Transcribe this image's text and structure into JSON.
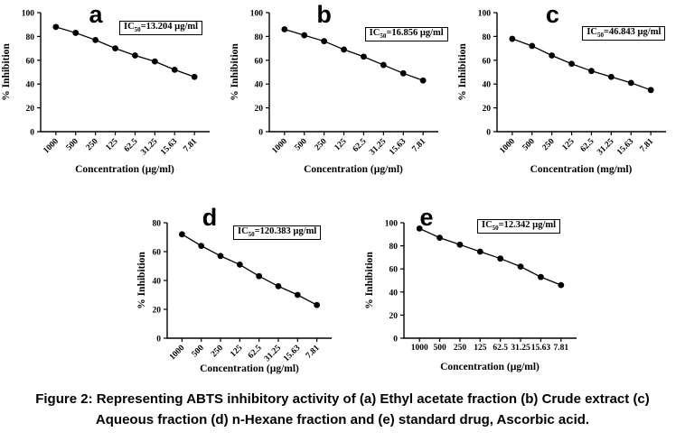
{
  "palette": {
    "ink": "#000000",
    "background": "#ffffff"
  },
  "ic_prefix": "IC",
  "ic_sub": "50",
  "figure_caption": {
    "line1": "Figure 2: Representing ABTS inhibitory activity of (a) Ethyl acetate fraction (b) Crude extract (c)",
    "line2": "Aqueous fraction (d) n-Hexane fraction and (e) standard drug, Ascorbic acid."
  },
  "chart_data": [
    {
      "id": "a",
      "type": "line",
      "panel_label": "a",
      "ic50_rest": "=13.204 µg/ml",
      "xlabel": "Concentration (µg/ml)",
      "ylabel": "% Inhibition",
      "categories": [
        "1000",
        "500",
        "250",
        "125",
        "62.5",
        "31.25",
        "15.63",
        "7.81"
      ],
      "values": [
        88,
        83,
        77,
        70,
        64,
        59,
        52,
        46
      ],
      "ylim": [
        0,
        100
      ],
      "yticks": [
        0,
        20,
        40,
        60,
        80,
        100
      ],
      "rotated_xticklabels": true,
      "marker": "filled-circle",
      "grid": false
    },
    {
      "id": "b",
      "type": "line",
      "panel_label": "b",
      "ic50_rest": "=16.856 µg/ml",
      "xlabel": "Concentration (µg/ml)",
      "ylabel": "% Inhibition",
      "categories": [
        "1000",
        "500",
        "250",
        "125",
        "62.5",
        "31.25",
        "15.63",
        "7.81"
      ],
      "values": [
        86,
        81,
        76,
        69,
        63,
        56,
        49,
        43
      ],
      "ylim": [
        0,
        100
      ],
      "yticks": [
        0,
        20,
        40,
        60,
        80,
        100
      ],
      "rotated_xticklabels": true,
      "marker": "filled-circle",
      "grid": false
    },
    {
      "id": "c",
      "type": "line",
      "panel_label": "c",
      "ic50_rest": "=46.843 µg/ml",
      "xlabel": "Concentration (mg/ml)",
      "ylabel": "% Inhibition",
      "categories": [
        "1000",
        "500",
        "250",
        "125",
        "62.5",
        "31.25",
        "15.63",
        "7.81"
      ],
      "values": [
        78,
        72,
        64,
        57,
        51,
        46,
        41,
        35
      ],
      "ylim": [
        0,
        100
      ],
      "yticks": [
        0,
        20,
        40,
        60,
        80,
        100
      ],
      "rotated_xticklabels": true,
      "marker": "filled-circle",
      "grid": false
    },
    {
      "id": "d",
      "type": "line",
      "panel_label": "d",
      "ic50_rest": "=120.383 µg/ml",
      "xlabel": "Concentration (µg/ml)",
      "ylabel": "% Inhibition",
      "categories": [
        "1000",
        "500",
        "250",
        "125",
        "62.5",
        "31.25",
        "15.63",
        "7.81"
      ],
      "values": [
        72,
        64,
        57,
        51,
        43,
        36,
        30,
        23
      ],
      "ylim": [
        0,
        80
      ],
      "yticks": [
        0,
        20,
        40,
        60,
        80
      ],
      "rotated_xticklabels": true,
      "marker": "filled-circle",
      "grid": false
    },
    {
      "id": "e",
      "type": "line",
      "panel_label": "e",
      "ic50_rest": "=12.342 µg/ml",
      "xlabel": "Concentration (µg/ml)",
      "ylabel": "% Inhibition",
      "categories": [
        "1000",
        "500",
        "250",
        "125",
        "62.5",
        "31.25",
        "15.63",
        "7.81"
      ],
      "values": [
        95,
        87,
        81,
        75,
        69,
        62,
        53,
        46
      ],
      "ylim": [
        0,
        100
      ],
      "yticks": [
        0,
        20,
        40,
        60,
        80,
        100
      ],
      "rotated_xticklabels": false,
      "marker": "filled-circle",
      "grid": false
    }
  ]
}
